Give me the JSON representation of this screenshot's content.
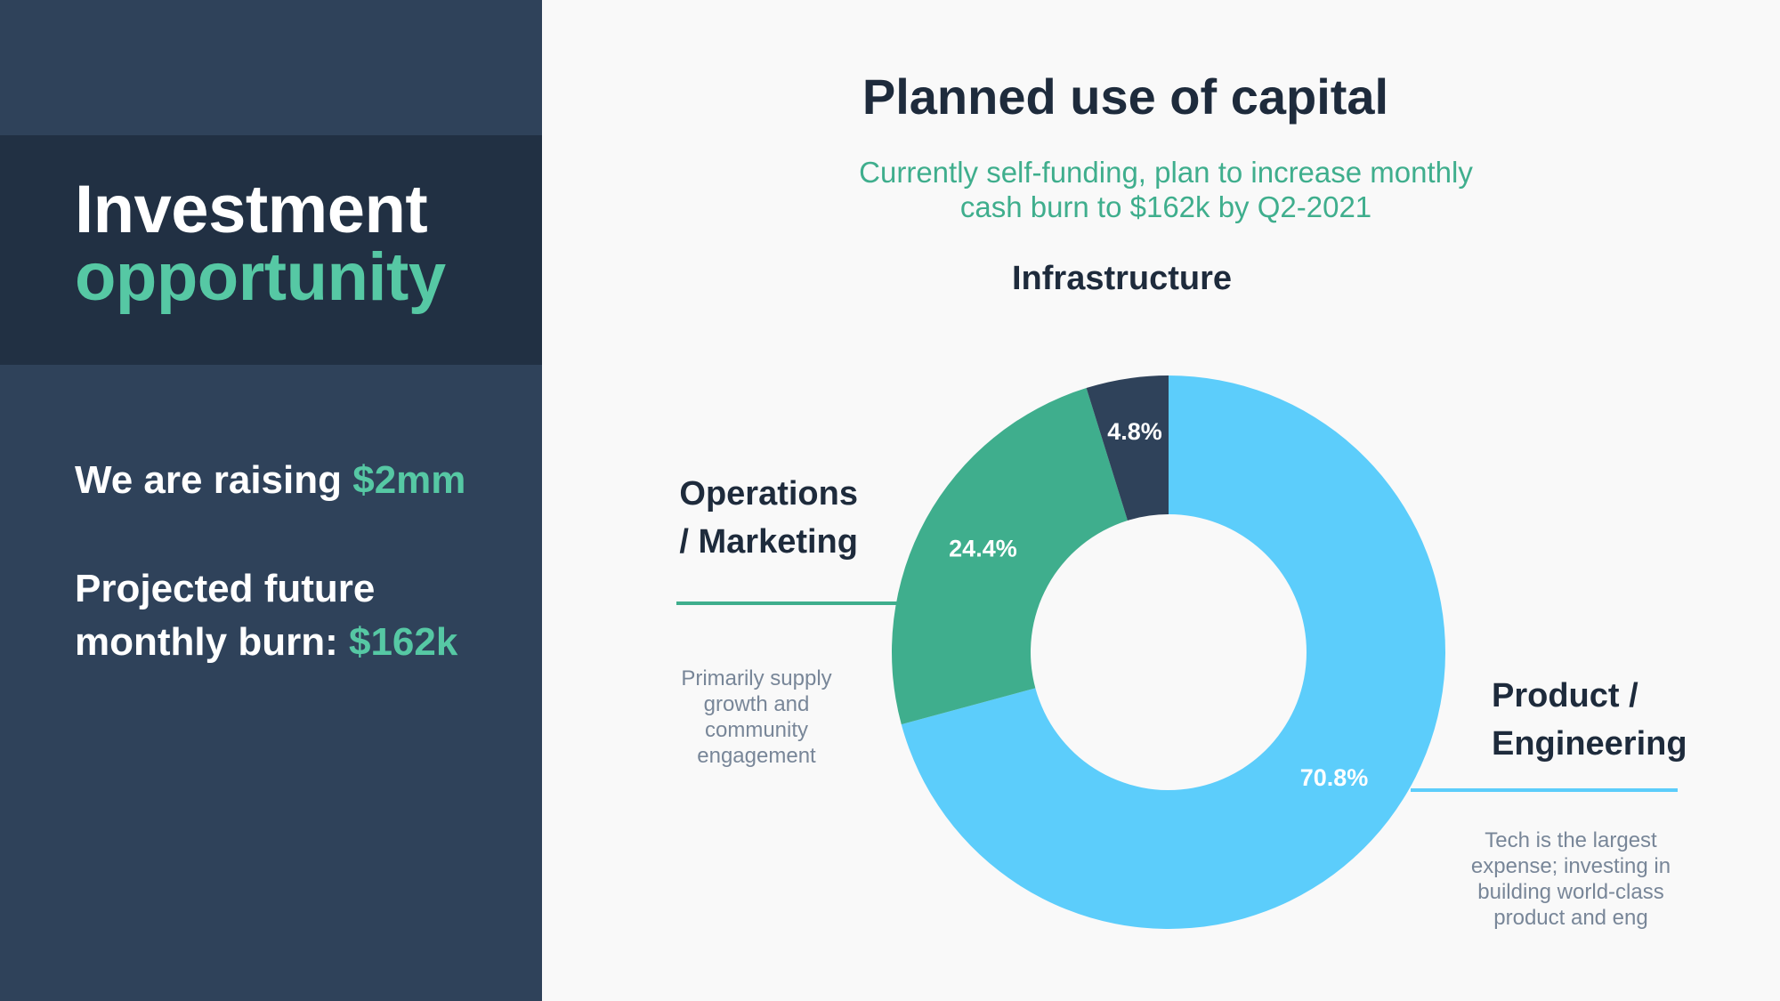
{
  "sidebar": {
    "title_line1": "Investment",
    "title_line2": "opportunity",
    "raise_prefix": "We are raising ",
    "raise_amount": "$2mm",
    "burn_line1": "Projected future",
    "burn_line2_prefix": "monthly burn: ",
    "burn_amount": "$162k"
  },
  "colors": {
    "panel": "#2f425a",
    "band": "#213043",
    "accent_green": "#56c8a4",
    "teal": "#3fae8d",
    "blue": "#5ccdfb",
    "navy": "#2f425a"
  },
  "chart_data": {
    "type": "pie",
    "title": "Planned use of capital",
    "subtitle_line1": "Currently self-funding, plan to increase monthly",
    "subtitle_line2": "cash burn to $162k by Q2-2021",
    "slices": [
      {
        "name": "Product / Engineering",
        "label_line1": "Product /",
        "label_line2": "Engineering",
        "value": 70.8,
        "value_label": "70.8%",
        "color": "#5ccdfb",
        "description": "Tech is the largest expense; investing in building world-class product and eng"
      },
      {
        "name": "Operations / Marketing",
        "label_line1": "Operations",
        "label_line2": "/ Marketing",
        "value": 24.4,
        "value_label": "24.4%",
        "color": "#3fae8d",
        "description": "Primarily supply growth and community engagement"
      },
      {
        "name": "Infrastructure",
        "label_line1": "Infrastructure",
        "value": 4.8,
        "value_label": "4.8%",
        "color": "#2f425a"
      }
    ],
    "donut": true,
    "legend": "none"
  }
}
